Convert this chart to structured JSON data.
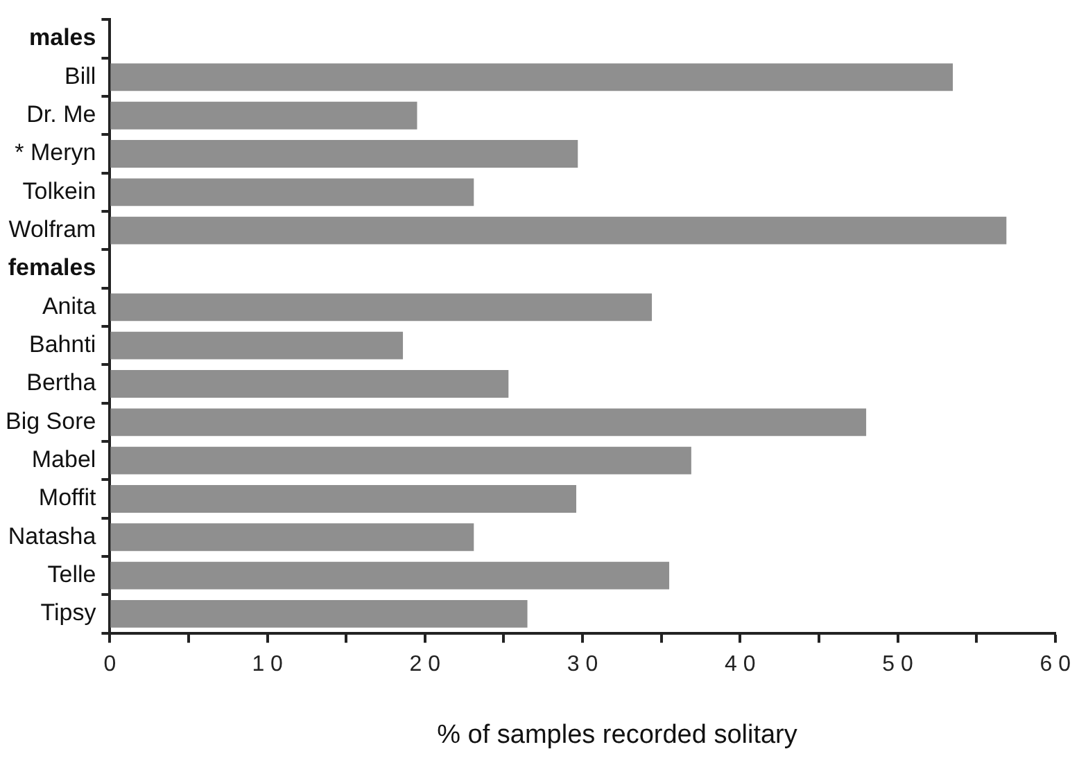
{
  "chart_data": {
    "type": "bar",
    "orientation": "horizontal",
    "xlabel": "% of samples recorded solitary",
    "categories": [
      "males",
      "Bill",
      "Dr. Me",
      "* Meryn",
      "Tolkein",
      "Wolfram",
      "females",
      "Anita",
      "Bahnti",
      "Bertha",
      "Big Sore",
      "Mabel",
      "Moffit",
      "Natasha",
      "Telle",
      "Tipsy"
    ],
    "values": [
      null,
      53.5,
      19.5,
      29.7,
      23.1,
      56.9,
      null,
      34.4,
      18.6,
      25.3,
      48.0,
      36.9,
      29.6,
      23.1,
      35.5,
      26.5
    ],
    "color": "#8f8f8f",
    "xlim": [
      0,
      60
    ],
    "xticks": [
      0,
      {
        "value": 5,
        "label": null
      },
      10,
      {
        "value": 15,
        "label": null
      },
      20,
      {
        "value": 25,
        "label": null
      },
      30,
      {
        "value": 35,
        "label": null
      },
      40,
      {
        "value": 45,
        "label": null
      },
      50,
      {
        "value": 55,
        "label": null
      },
      60
    ],
    "grid": false,
    "legend": false
  }
}
